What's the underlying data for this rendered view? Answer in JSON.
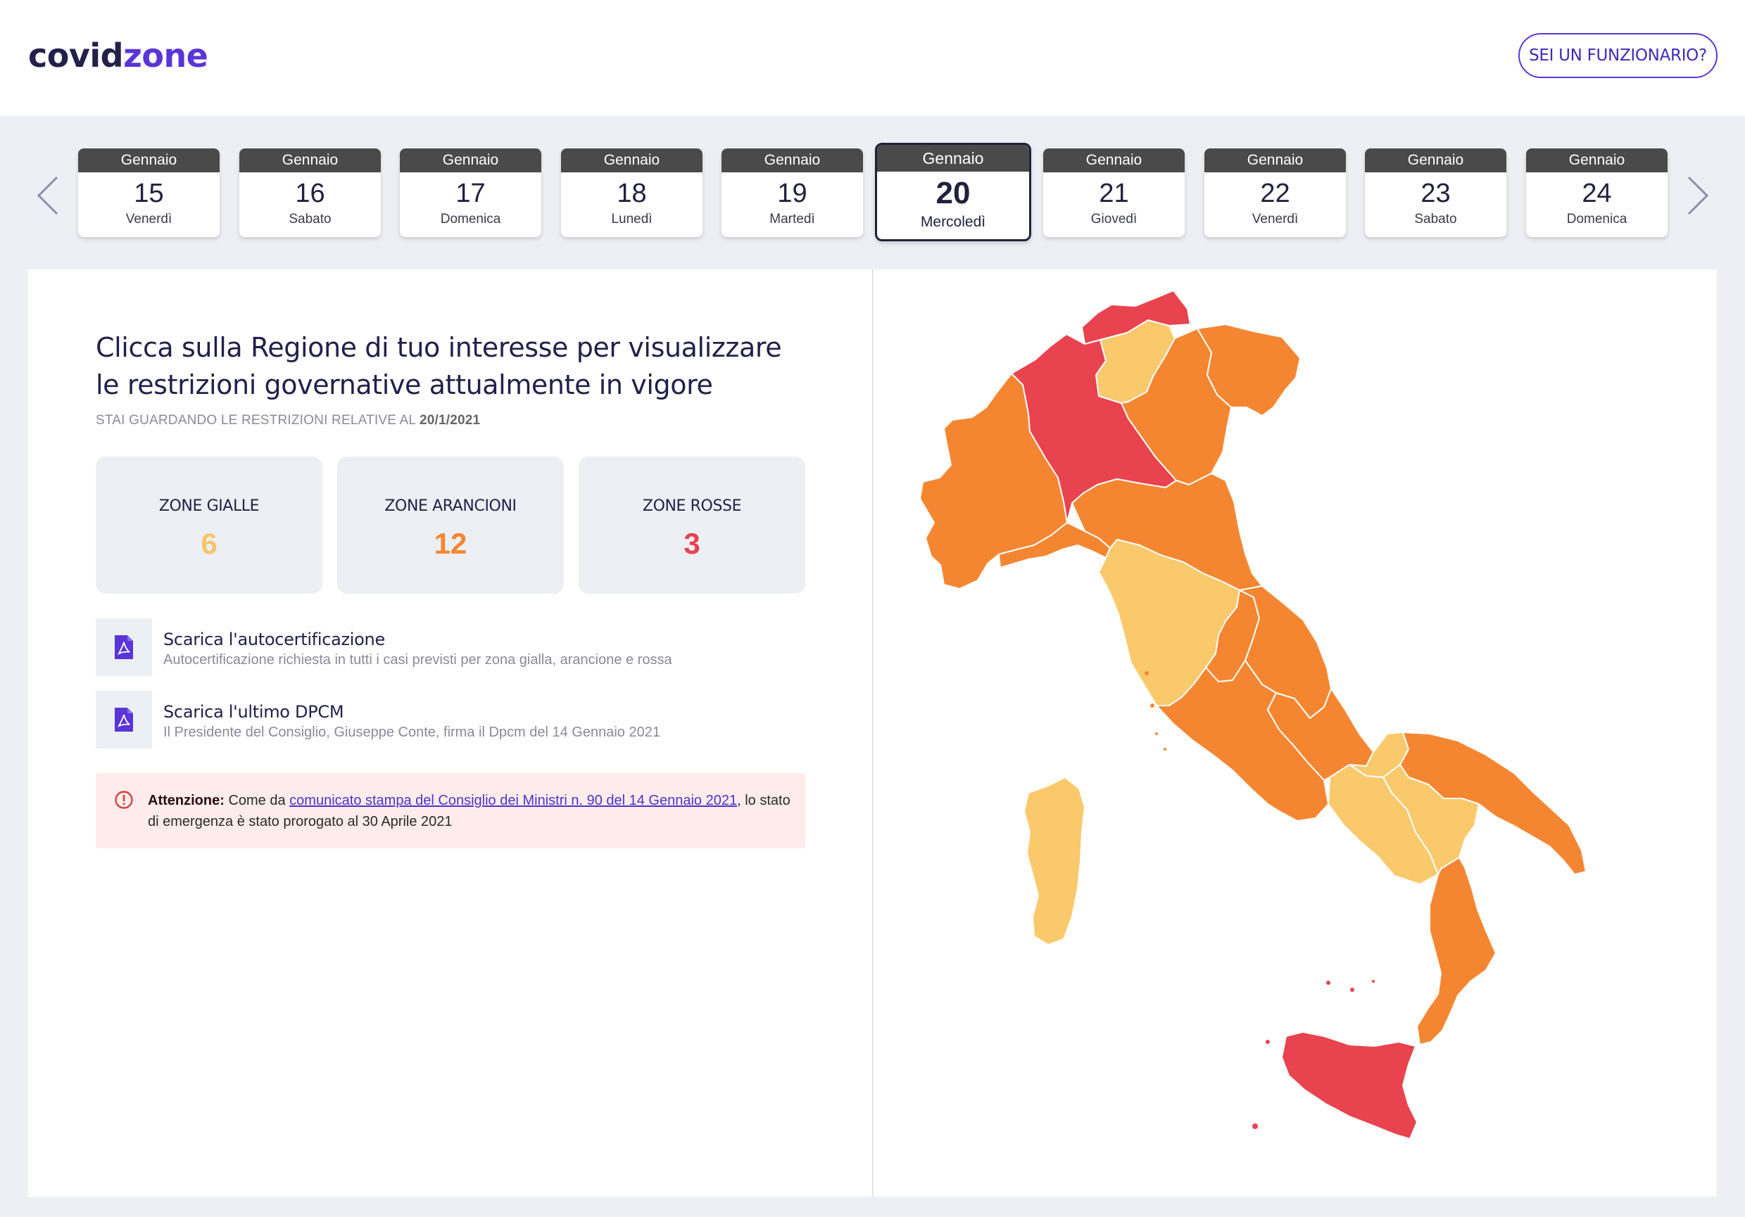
{
  "header": {
    "logo_part1": "covid",
    "logo_part2": "zone",
    "official_button": "SEI UN FUNZIONARIO?"
  },
  "dates": [
    {
      "month": "Gennaio",
      "day": "15",
      "weekday": "Venerdì"
    },
    {
      "month": "Gennaio",
      "day": "16",
      "weekday": "Sabato"
    },
    {
      "month": "Gennaio",
      "day": "17",
      "weekday": "Domenica"
    },
    {
      "month": "Gennaio",
      "day": "18",
      "weekday": "Lunedì"
    },
    {
      "month": "Gennaio",
      "day": "19",
      "weekday": "Martedì"
    },
    {
      "month": "Gennaio",
      "day": "20",
      "weekday": "Mercoledì"
    },
    {
      "month": "Gennaio",
      "day": "21",
      "weekday": "Giovedì"
    },
    {
      "month": "Gennaio",
      "day": "22",
      "weekday": "Venerdì"
    },
    {
      "month": "Gennaio",
      "day": "23",
      "weekday": "Sabato"
    },
    {
      "month": "Gennaio",
      "day": "24",
      "weekday": "Domenica"
    }
  ],
  "selected_date_index": 5,
  "main": {
    "title": "Clicca sulla Regione di tuo interesse per visualizzare le restrizioni governative attualmente in vigore",
    "subtitle_prefix": "STAI GUARDANDO LE RESTRIZIONI RELATIVE AL",
    "subtitle_date": "20/1/2021",
    "stats": [
      {
        "label": "ZONE GIALLE",
        "value": "6",
        "color": "#f7c56a"
      },
      {
        "label": "ZONE ARANCIONI",
        "value": "12",
        "color": "#f58631"
      },
      {
        "label": "ZONE ROSSE",
        "value": "3",
        "color": "#e8414e"
      }
    ],
    "docs": [
      {
        "title": "Scarica l'autocertificazione",
        "desc": "Autocertificazione richiesta in tutti i casi previsti per zona gialla, arancione e rossa",
        "icon": "pdf-icon"
      },
      {
        "title": "Scarica l'ultimo DPCM",
        "desc": "Il Presidente del Consiglio, Giuseppe Conte, firma il Dpcm del 14 Gennaio 2021",
        "icon": "pdf-icon"
      }
    ],
    "alert": {
      "label": "Attenzione:",
      "text_before": "Come da",
      "link": "comunicato stampa del Consiglio dei Ministri n. 90 del 14 Gennaio 2021",
      "text_after": ", lo stato di emergenza è stato prorogato al 30 Aprile 2021"
    }
  },
  "colors": {
    "yellow": "#f9c96c",
    "orange": "#f58631",
    "red": "#e8434e",
    "accent": "#5a35d8"
  }
}
